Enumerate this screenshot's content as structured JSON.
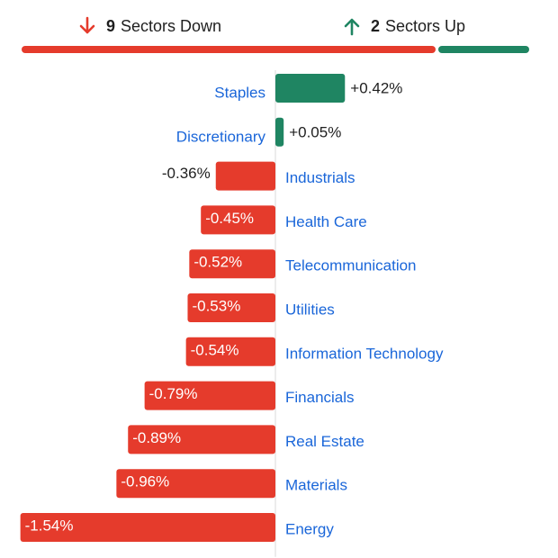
{
  "summary": {
    "down_count": "9",
    "down_label": "Sectors Down",
    "up_count": "2",
    "up_label": "Sectors Up",
    "down_icon": "arrow-down-icon",
    "up_icon": "arrow-up-icon"
  },
  "colors": {
    "positive": "#1f8562",
    "negative": "#e53b2c",
    "label": "#1a66d9",
    "value_text": "#1f1f1f",
    "axis": "#d9d9d9"
  },
  "chart_data": {
    "type": "bar",
    "orientation": "horizontal",
    "categories": [
      "Staples",
      "Discretionary",
      "Industrials",
      "Health Care",
      "Telecommunication",
      "Utilities",
      "Information Technology",
      "Financials",
      "Real Estate",
      "Materials",
      "Energy"
    ],
    "values": [
      0.42,
      0.05,
      -0.36,
      -0.45,
      -0.52,
      -0.53,
      -0.54,
      -0.79,
      -0.89,
      -0.96,
      -1.54
    ],
    "value_labels": [
      "+0.42%",
      "+0.05%",
      "-0.36%",
      "-0.45%",
      "-0.52%",
      "-0.53%",
      "-0.54%",
      "-0.79%",
      "-0.89%",
      "-0.96%",
      "-1.54%"
    ],
    "unit": "%",
    "title": "",
    "xlabel": "",
    "ylabel": "",
    "grid": false,
    "legend": "none"
  }
}
